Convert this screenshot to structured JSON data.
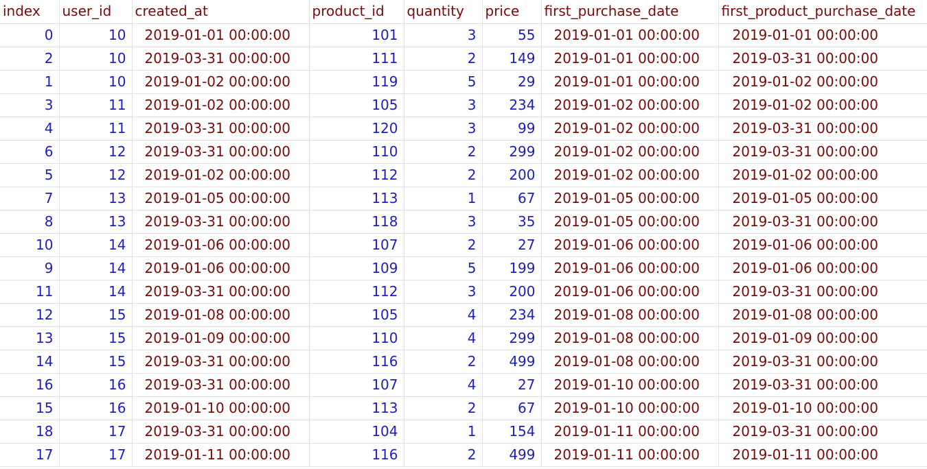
{
  "table": {
    "columns": [
      "index",
      "user_id",
      "created_at",
      "product_id",
      "quantity",
      "price",
      "first_purchase_date",
      "first_product_purchase_date"
    ],
    "rows": [
      [
        "0",
        "10",
        "2019-01-01 00:00:00",
        "101",
        "3",
        "55",
        "2019-01-01 00:00:00",
        "2019-01-01 00:00:00"
      ],
      [
        "2",
        "10",
        "2019-03-31 00:00:00",
        "111",
        "2",
        "149",
        "2019-01-01 00:00:00",
        "2019-03-31 00:00:00"
      ],
      [
        "1",
        "10",
        "2019-01-02 00:00:00",
        "119",
        "5",
        "29",
        "2019-01-01 00:00:00",
        "2019-01-02 00:00:00"
      ],
      [
        "3",
        "11",
        "2019-01-02 00:00:00",
        "105",
        "3",
        "234",
        "2019-01-02 00:00:00",
        "2019-01-02 00:00:00"
      ],
      [
        "4",
        "11",
        "2019-03-31 00:00:00",
        "120",
        "3",
        "99",
        "2019-01-02 00:00:00",
        "2019-03-31 00:00:00"
      ],
      [
        "6",
        "12",
        "2019-03-31 00:00:00",
        "110",
        "2",
        "299",
        "2019-01-02 00:00:00",
        "2019-03-31 00:00:00"
      ],
      [
        "5",
        "12",
        "2019-01-02 00:00:00",
        "112",
        "2",
        "200",
        "2019-01-02 00:00:00",
        "2019-01-02 00:00:00"
      ],
      [
        "7",
        "13",
        "2019-01-05 00:00:00",
        "113",
        "1",
        "67",
        "2019-01-05 00:00:00",
        "2019-01-05 00:00:00"
      ],
      [
        "8",
        "13",
        "2019-03-31 00:00:00",
        "118",
        "3",
        "35",
        "2019-01-05 00:00:00",
        "2019-03-31 00:00:00"
      ],
      [
        "10",
        "14",
        "2019-01-06 00:00:00",
        "107",
        "2",
        "27",
        "2019-01-06 00:00:00",
        "2019-01-06 00:00:00"
      ],
      [
        "9",
        "14",
        "2019-01-06 00:00:00",
        "109",
        "5",
        "199",
        "2019-01-06 00:00:00",
        "2019-01-06 00:00:00"
      ],
      [
        "11",
        "14",
        "2019-03-31 00:00:00",
        "112",
        "3",
        "200",
        "2019-01-06 00:00:00",
        "2019-03-31 00:00:00"
      ],
      [
        "12",
        "15",
        "2019-01-08 00:00:00",
        "105",
        "4",
        "234",
        "2019-01-08 00:00:00",
        "2019-01-08 00:00:00"
      ],
      [
        "13",
        "15",
        "2019-01-09 00:00:00",
        "110",
        "4",
        "299",
        "2019-01-08 00:00:00",
        "2019-01-09 00:00:00"
      ],
      [
        "14",
        "15",
        "2019-03-31 00:00:00",
        "116",
        "2",
        "499",
        "2019-01-08 00:00:00",
        "2019-03-31 00:00:00"
      ],
      [
        "16",
        "16",
        "2019-03-31 00:00:00",
        "107",
        "4",
        "27",
        "2019-01-10 00:00:00",
        "2019-03-31 00:00:00"
      ],
      [
        "15",
        "16",
        "2019-01-10 00:00:00",
        "113",
        "2",
        "67",
        "2019-01-10 00:00:00",
        "2019-01-10 00:00:00"
      ],
      [
        "18",
        "17",
        "2019-03-31 00:00:00",
        "104",
        "1",
        "154",
        "2019-01-11 00:00:00",
        "2019-03-31 00:00:00"
      ],
      [
        "17",
        "17",
        "2019-01-11 00:00:00",
        "116",
        "2",
        "499",
        "2019-01-11 00:00:00",
        "2019-01-11 00:00:00"
      ]
    ]
  },
  "colors": {
    "header_text": "#7a0a0a",
    "number_text": "#1c1cc8",
    "date_text": "#7a0a0a",
    "grid_line": "#e2e2e2"
  }
}
